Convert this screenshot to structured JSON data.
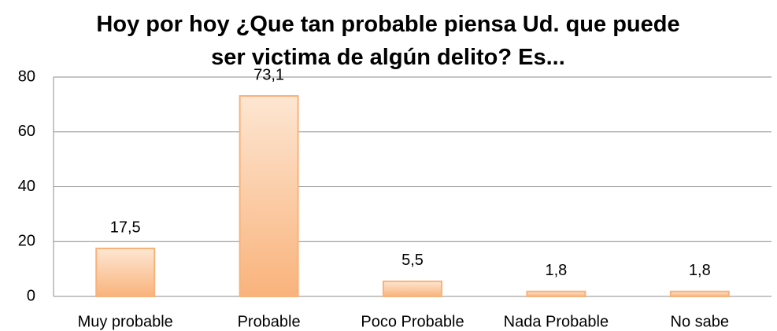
{
  "chart_data": {
    "type": "bar",
    "title": "Hoy por hoy ¿Que tan probable piensa Ud. que puede ser victima de algún delito? Es...",
    "categories": [
      "Muy probable",
      "Probable",
      "Poco Probable",
      "Nada Probable",
      "No sabe"
    ],
    "values": [
      17.5,
      73.1,
      5.5,
      1.8,
      1.8
    ],
    "value_labels": [
      "17,5",
      "73,1",
      "5,5",
      "1,8",
      "1,8"
    ],
    "color": "#f8b27a",
    "ylim": [
      0,
      80
    ],
    "yticks": [
      0,
      20,
      40,
      60,
      80
    ],
    "grid": true
  }
}
